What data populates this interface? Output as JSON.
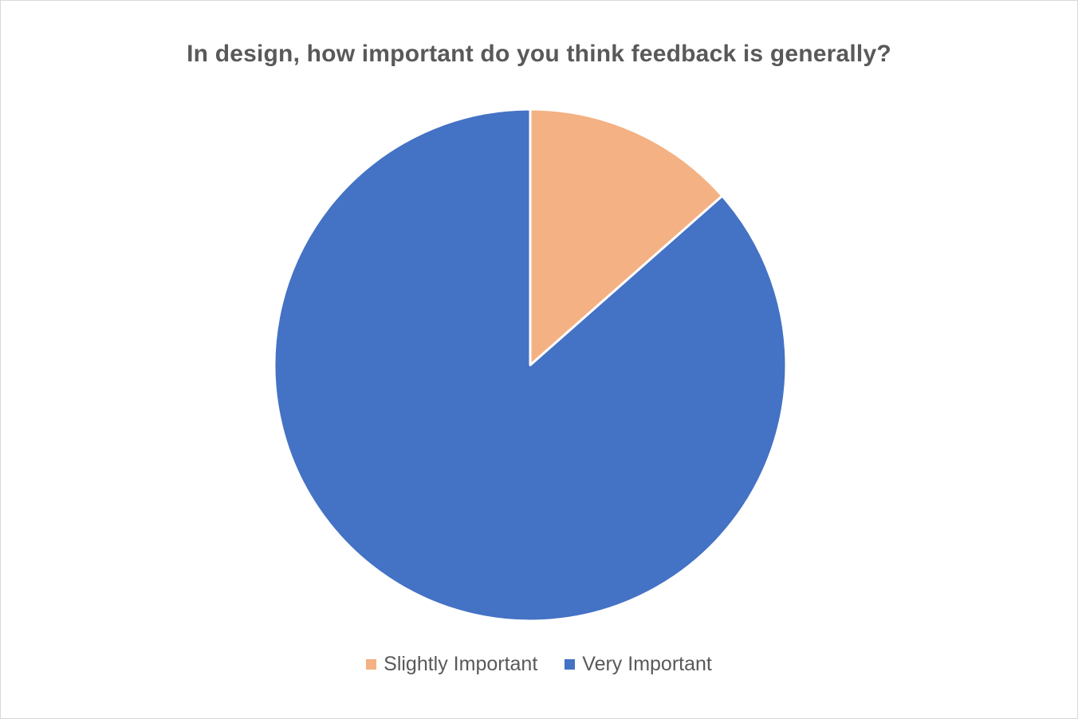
{
  "chart_data": {
    "type": "pie",
    "title": "In design, how important do you think feedback is generally?",
    "categories": [
      "Slightly Important",
      "Very Important"
    ],
    "values": [
      13.5,
      86.5
    ],
    "colors": [
      "#F4B183",
      "#4472C4"
    ],
    "start_angle_deg": 0,
    "direction": "clockwise",
    "legend_position": "bottom",
    "data_labels": false
  }
}
